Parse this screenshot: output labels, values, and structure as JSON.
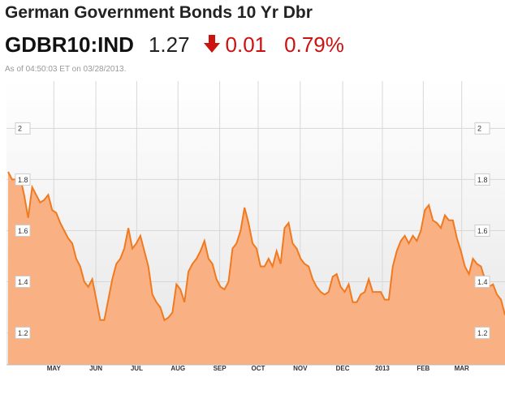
{
  "header": {
    "title": "German Government Bonds 10 Yr Dbr",
    "ticker": "GDBR10:IND",
    "price": "1.27",
    "change": "0.01",
    "change_pct": "0.79%",
    "timestamp": "As of 04:50:03 ET on 03/28/2013."
  },
  "chart_data": {
    "type": "area",
    "color": "#f07a20",
    "fill": "#f9b083",
    "grid": true,
    "values": [
      1.83,
      1.8,
      1.8,
      1.81,
      1.74,
      1.65,
      1.77,
      1.74,
      1.71,
      1.72,
      1.74,
      1.68,
      1.67,
      1.63,
      1.6,
      1.57,
      1.55,
      1.49,
      1.46,
      1.4,
      1.38,
      1.41,
      1.33,
      1.25,
      1.25,
      1.33,
      1.41,
      1.47,
      1.49,
      1.53,
      1.61,
      1.53,
      1.55,
      1.58,
      1.52,
      1.46,
      1.35,
      1.32,
      1.3,
      1.25,
      1.26,
      1.28,
      1.39,
      1.37,
      1.32,
      1.44,
      1.47,
      1.49,
      1.52,
      1.56,
      1.49,
      1.47,
      1.41,
      1.38,
      1.37,
      1.4,
      1.53,
      1.55,
      1.6,
      1.69,
      1.63,
      1.55,
      1.53,
      1.46,
      1.46,
      1.49,
      1.46,
      1.52,
      1.47,
      1.61,
      1.63,
      1.55,
      1.53,
      1.49,
      1.47,
      1.46,
      1.41,
      1.38,
      1.36,
      1.35,
      1.36,
      1.42,
      1.43,
      1.38,
      1.36,
      1.39,
      1.32,
      1.32,
      1.35,
      1.36,
      1.41,
      1.36,
      1.36,
      1.36,
      1.33,
      1.33,
      1.46,
      1.52,
      1.56,
      1.58,
      1.55,
      1.58,
      1.56,
      1.6,
      1.68,
      1.7,
      1.64,
      1.63,
      1.61,
      1.66,
      1.64,
      1.64,
      1.57,
      1.52,
      1.46,
      1.43,
      1.49,
      1.47,
      1.46,
      1.41,
      1.38,
      1.39,
      1.35,
      1.33,
      1.27
    ],
    "xlim": [
      0,
      124
    ],
    "xticks": [
      {
        "value": 11.4,
        "label": "MAY"
      },
      {
        "value": 21.9,
        "label": "JUN"
      },
      {
        "value": 32.1,
        "label": "JUL"
      },
      {
        "value": 42.4,
        "label": "AUG"
      },
      {
        "value": 52.8,
        "label": "SEP"
      },
      {
        "value": 62.4,
        "label": "OCT"
      },
      {
        "value": 72.9,
        "label": "NOV"
      },
      {
        "value": 83.5,
        "label": "DEC"
      },
      {
        "value": 93.4,
        "label": "2013"
      },
      {
        "value": 103.6,
        "label": "FEB"
      },
      {
        "value": 113.2,
        "label": "MAR"
      }
    ],
    "ylim": [
      1.075,
      2.185
    ],
    "yticks": [
      1.2,
      1.4,
      1.6,
      1.8,
      2
    ]
  }
}
